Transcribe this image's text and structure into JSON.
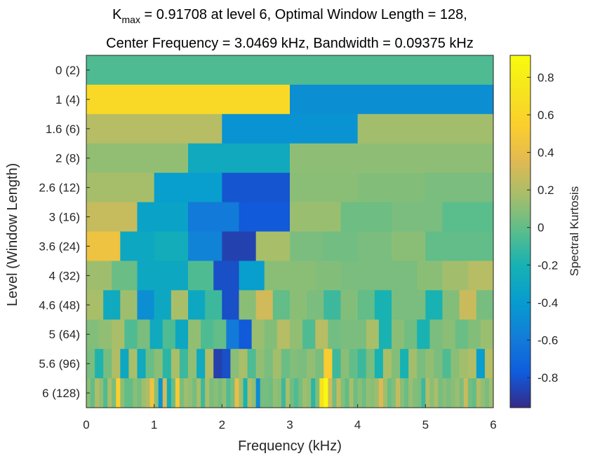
{
  "chart_data": {
    "type": "heatmap",
    "title": {
      "line1_prefix": "K",
      "line1_sub": "max",
      "line1_rest": " = 0.91708 at level 6, Optimal Window Length = 128,",
      "line2": "Center Frequency = 3.0469 kHz, Bandwidth = 0.09375 kHz"
    },
    "xlabel": "Frequency (kHz)",
    "ylabel": "Level (Window Length)",
    "colorbar_label": "Spectral Kurtosis",
    "xlim": [
      0,
      6
    ],
    "x_ticks": [
      "0",
      "1",
      "2",
      "3",
      "4",
      "5",
      "6"
    ],
    "clim": [
      -0.96,
      0.917
    ],
    "colorbar_ticks": [
      "-0.8",
      "-0.6",
      "-0.4",
      "-0.2",
      "0",
      "0.2",
      "0.4",
      "0.6",
      "0.8"
    ],
    "colormap": "parula",
    "levels": [
      {
        "label": "0  (2)",
        "values": [
          -0.05
        ]
      },
      {
        "label": "1  (4)",
        "values": [
          0.63,
          -0.48
        ]
      },
      {
        "label": "1.6  (6)",
        "values": [
          0.22,
          -0.45,
          0.16
        ]
      },
      {
        "label": "2  (8)",
        "values": [
          0.12,
          -0.28,
          0.11,
          0.11
        ]
      },
      {
        "label": "2.6  (12)",
        "values": [
          0.17,
          -0.38,
          -0.8,
          0.1,
          0.08,
          0.06
        ]
      },
      {
        "label": "3  (16)",
        "values": [
          0.27,
          -0.34,
          -0.6,
          -0.78,
          0.14,
          0.03,
          0.06,
          -0.02
        ]
      },
      {
        "label": "3.6  (24)",
        "values": [
          0.44,
          -0.3,
          -0.25,
          -0.55,
          -0.87,
          0.18,
          0.06,
          0.04,
          0.06,
          0.1,
          0.0,
          0.0
        ]
      },
      {
        "label": "4  (32)",
        "values": [
          0.15,
          0.02,
          -0.3,
          -0.3,
          -0.05,
          -0.82,
          -0.38,
          0.1,
          0.1,
          0.08,
          0.06,
          0.06,
          0.06,
          0.1,
          0.16,
          0.22
        ]
      },
      {
        "label": "4.6  (48)",
        "values": [
          0.18,
          -0.28,
          0.15,
          -0.48,
          -0.3,
          0.18,
          -0.3,
          -0.1,
          -0.82,
          0.1,
          0.3,
          0.0,
          0.1,
          0.06,
          -0.1,
          0.08,
          0.0,
          -0.2,
          0.06,
          0.06,
          -0.2,
          0.08,
          0.28,
          0.05
        ]
      },
      {
        "label": "5  (64)",
        "values": [
          0.08,
          0.12,
          0.18,
          -0.05,
          0.06,
          -0.28,
          -0.05,
          -0.3,
          0.12,
          -0.05,
          0.0,
          -0.6,
          -0.78,
          0.14,
          0.08,
          0.22,
          0.12,
          -0.05,
          0.22,
          0.04,
          0.06,
          0.06,
          0.18,
          -0.2,
          0.1,
          0.04,
          -0.2,
          0.06,
          0.1,
          0.02,
          0.08,
          0.14
        ]
      },
      {
        "label": "5.6  (96)",
        "values": [
          0.06,
          -0.18,
          0.05,
          0.2,
          -0.3,
          0.18,
          -0.28,
          0.02,
          0.1,
          -0.15,
          0.18,
          -0.1,
          0.12,
          -0.28,
          0.2,
          -0.88,
          -0.82,
          0.1,
          0.18,
          -0.05,
          0.12,
          0.06,
          0.16,
          0.02,
          0.08,
          0.06,
          0.12,
          0.06,
          0.52,
          -0.1,
          0.1,
          0.0,
          -0.1,
          0.06,
          -0.2,
          0.18,
          0.08,
          -0.2,
          0.16,
          0.06,
          0.12,
          0.06,
          -0.05,
          0.1,
          0.16,
          0.2,
          -0.38,
          0.22
        ]
      },
      {
        "label": "6 (128)",
        "values": [
          0.1,
          0.0,
          0.2,
          0.12,
          -0.05,
          0.18,
          0.05,
          0.55,
          0.1,
          0.0,
          0.0,
          0.1,
          0.05,
          0.15,
          0.2,
          0.45,
          0.1,
          -0.45,
          0.32,
          -0.25,
          0.02,
          0.5,
          0.06,
          0.15,
          0.12,
          0.05,
          0.18,
          -0.1,
          0.18,
          0.06,
          0.1,
          0.05,
          0.12,
          -0.05,
          0.05,
          0.4,
          0.15,
          -0.2,
          0.2,
          0.12,
          -0.5,
          0.05,
          0.05,
          0.03,
          0.12,
          0.1,
          -0.1,
          0.18,
          0.03,
          -0.05,
          0.05,
          0.15,
          0.12,
          -0.15,
          0.07,
          0.7,
          0.9,
          0.3,
          0.04,
          0.25,
          0.08,
          0.0,
          0.18,
          0.03,
          0.1,
          0.03,
          0.12,
          0.1,
          0.14,
          0.35,
          0.15,
          0.02,
          0.08,
          0.26,
          0.1,
          0.02,
          0.14,
          0.08,
          0.06,
          -0.1,
          0.2,
          0.1,
          0.18,
          0.05,
          0.1,
          0.06,
          0.1,
          0.14,
          0.06,
          0.28,
          0.05,
          0.0,
          0.2,
          0.12,
          0.06,
          0.15
        ]
      }
    ]
  }
}
